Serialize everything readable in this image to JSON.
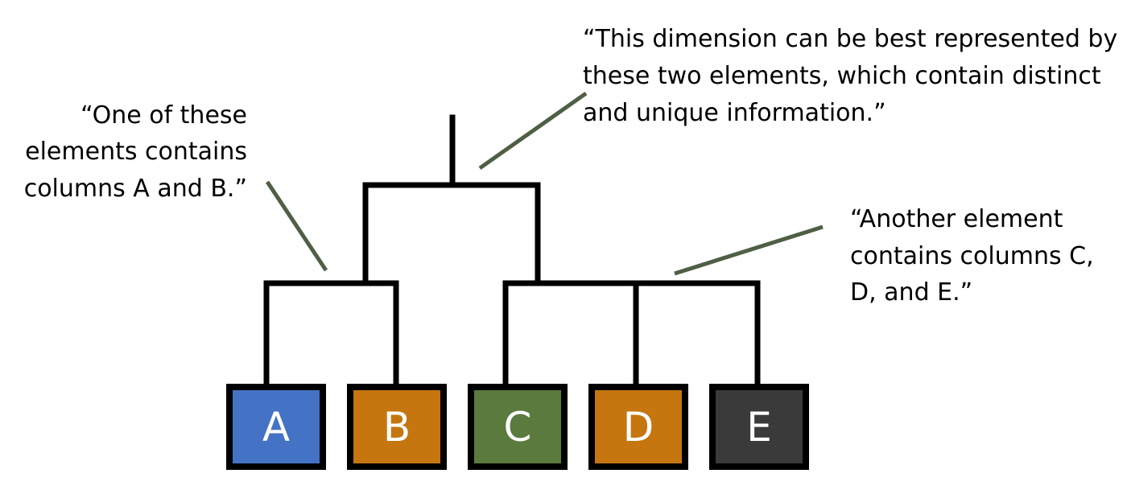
{
  "annotations": {
    "top": {
      "lines": [
        "“This dimension can be best represented by",
        "these two elements, which contain distinct",
        "and unique information.”"
      ]
    },
    "left": {
      "lines": [
        "“One of these",
        "elements contains",
        "columns A and B.”"
      ]
    },
    "right": {
      "lines": [
        "“Another element",
        "contains columns C,",
        "D, and E.”"
      ]
    }
  },
  "nodes": [
    {
      "label": "A",
      "color": "#4472c4"
    },
    {
      "label": "B",
      "color": "#c5760f"
    },
    {
      "label": "C",
      "color": "#5a7a3e"
    },
    {
      "label": "D",
      "color": "#c5760f"
    },
    {
      "label": "E",
      "color": "#3a3a3a"
    }
  ],
  "colors": {
    "tree_line": "#000000",
    "callout_line": "#4f5f45"
  }
}
